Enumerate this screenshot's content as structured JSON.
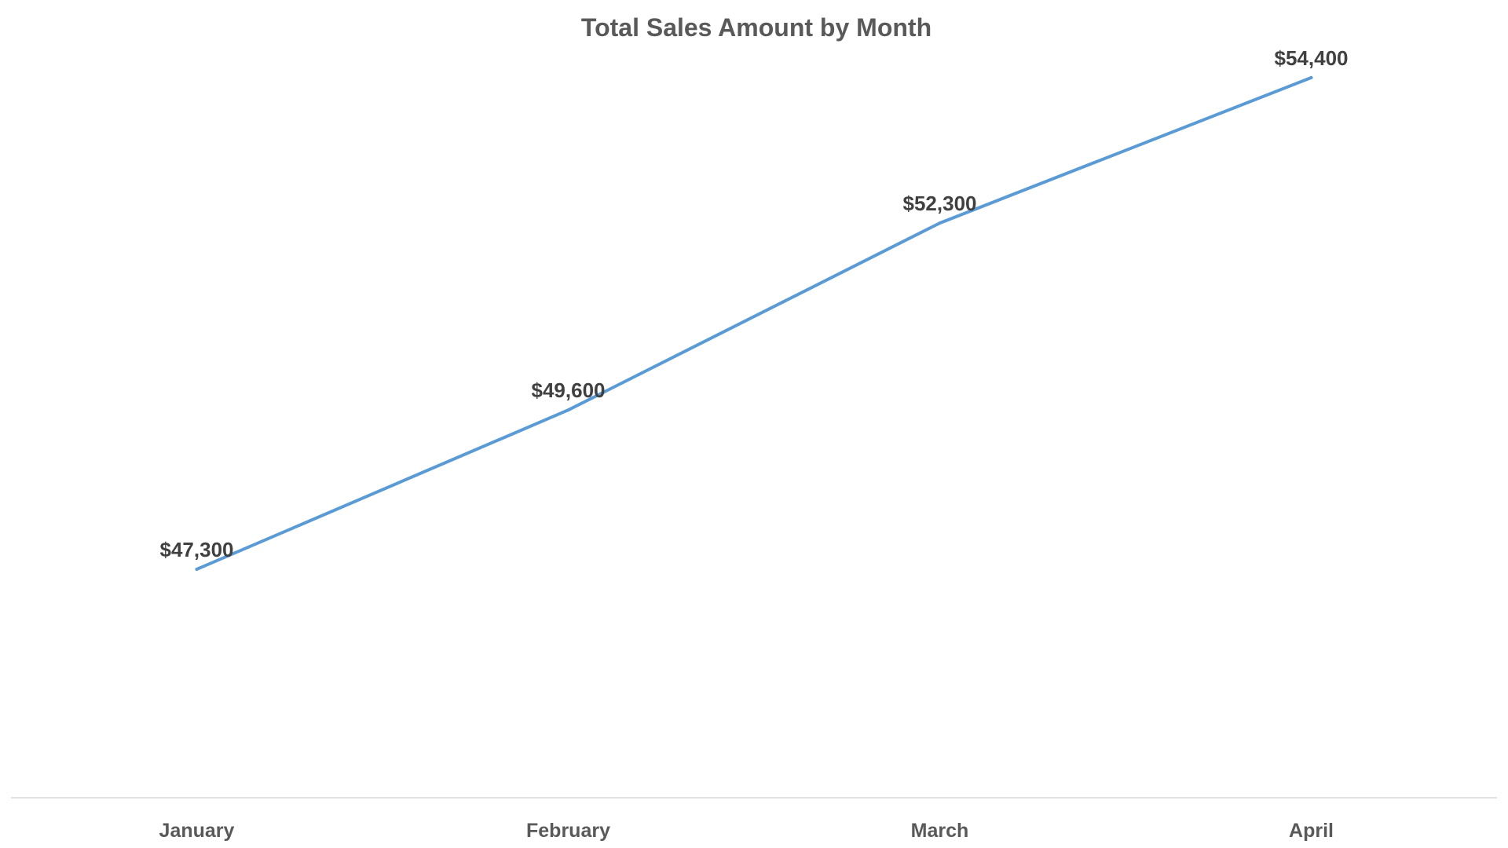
{
  "chart_data": {
    "type": "line",
    "title": "Total Sales Amount by Month",
    "xlabel": "",
    "ylabel": "",
    "categories": [
      "January",
      "February",
      "March",
      "April"
    ],
    "series": [
      {
        "values": [
          47300,
          49600,
          52300,
          54400
        ],
        "data_labels": [
          "$47,300",
          "$49,600",
          "$52,300",
          "$54,400"
        ],
        "color": "#5b9bd5"
      }
    ],
    "ylim": [
      44000,
      55000
    ],
    "grid": false,
    "legend": "none"
  }
}
